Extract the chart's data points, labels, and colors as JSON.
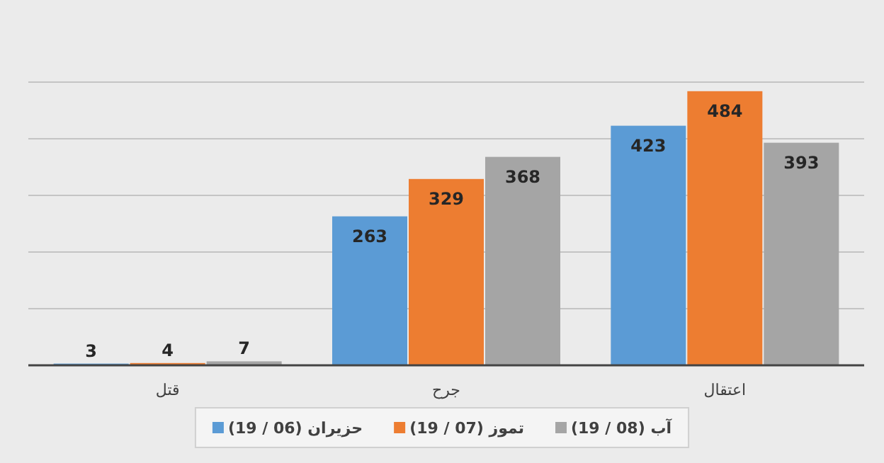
{
  "chart_data": {
    "type": "bar",
    "categories": [
      "قتل",
      "جرح",
      "اعتقال"
    ],
    "series": [
      {
        "name": "حزيران (06 / 19)",
        "color": "#5b9bd5",
        "values": [
          3,
          263,
          423
        ]
      },
      {
        "name": "تموز (07 / 19)",
        "color": "#ed7d31",
        "values": [
          4,
          329,
          484
        ]
      },
      {
        "name": "آب (08 / 19)",
        "color": "#a5a5a5",
        "values": [
          7,
          368,
          393
        ]
      }
    ],
    "ylim": [
      0,
      500
    ],
    "yticks": [
      {
        "value": 0,
        "label": null
      },
      {
        "value": 100,
        "label": null
      },
      {
        "value": 200,
        "label": null
      },
      {
        "value": 300,
        "label": null
      },
      {
        "value": 400,
        "label": null
      },
      {
        "value": 500,
        "label": null
      }
    ],
    "tick_labels": "x",
    "grid": "y",
    "legend": "bottom",
    "data_labels": true
  }
}
